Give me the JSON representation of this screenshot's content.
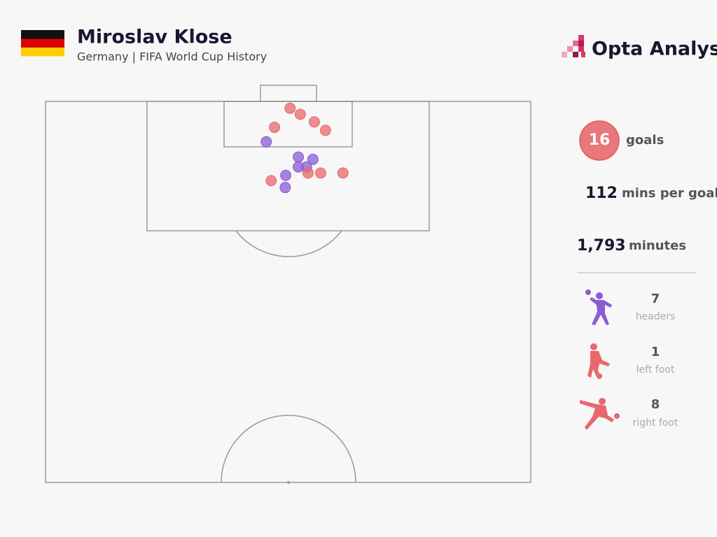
{
  "chart_data": {
    "type": "scatter",
    "title": "Miroslav Klose",
    "subtitle": "Germany | FIFA World Cup History",
    "brand": "Opta Analyst",
    "xlim": [
      0,
      100
    ],
    "ylim": [
      50,
      100
    ],
    "series": [
      {
        "name": "headers",
        "color": "#8a5cd6",
        "x": [
          45.5,
          52.1,
          55.1,
          52.1,
          53.8,
          49.5,
          49.4
        ],
        "values": [
          94.7,
          92.7,
          92.4,
          91.4,
          91.4,
          90.3,
          88.7
        ]
      },
      {
        "color": "#e8686e",
        "x": [
          50.4,
          52.5,
          55.4,
          57.7,
          47.2,
          46.5,
          54.1,
          56.7,
          61.3
        ],
        "values": [
          99.1,
          98.3,
          97.3,
          96.2,
          96.6,
          89.6,
          90.6,
          90.6,
          90.6
        ]
      }
    ],
    "stats": [
      {
        "value": "16",
        "label": "goals"
      },
      {
        "value": "112",
        "label": "mins per goal"
      },
      {
        "value": "1,793",
        "label": "minutes"
      }
    ],
    "breakdown": [
      {
        "value": "7",
        "label": "headers"
      },
      {
        "value": "1",
        "label": "left foot"
      },
      {
        "value": "8",
        "label": "right foot"
      }
    ]
  }
}
